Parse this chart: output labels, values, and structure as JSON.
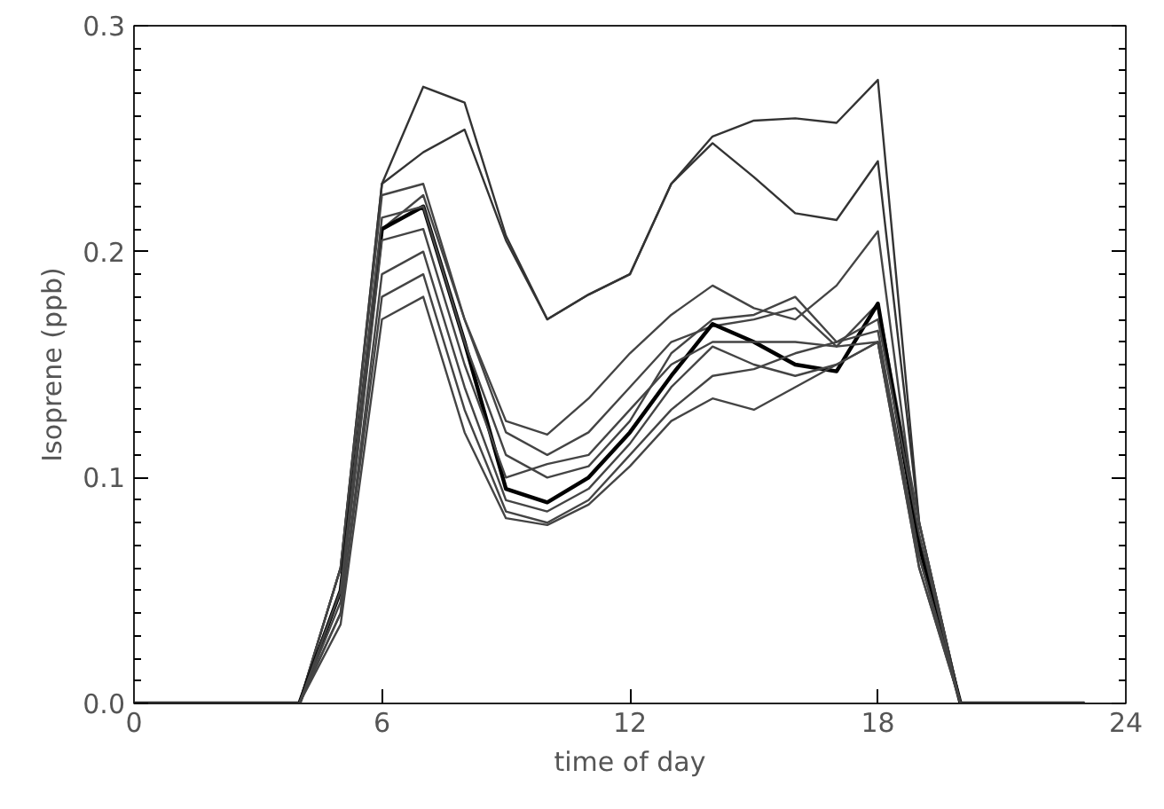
{
  "chart_data": {
    "type": "line",
    "xlabel": "time of day",
    "ylabel": "Isoprene (ppb)",
    "x": [
      0,
      1,
      2,
      3,
      4,
      5,
      6,
      7,
      8,
      9,
      10,
      11,
      12,
      13,
      14,
      15,
      16,
      17,
      18,
      19,
      20,
      21,
      22,
      23
    ],
    "xlim": [
      0,
      24
    ],
    "xticks": [
      0,
      6,
      12,
      18,
      24
    ],
    "ylim": [
      0,
      0.3
    ],
    "yticks": [
      {
        "value": 0,
        "label": "0.0"
      },
      {
        "value": 0.1,
        "label": "0.1"
      },
      {
        "value": 0.2,
        "label": "0.2"
      },
      {
        "value": 0.3,
        "label": "0.3"
      }
    ],
    "grid": false,
    "marker": "none",
    "line_style": "solid",
    "series": [
      {
        "color": "#333333",
        "values": [
          0,
          0,
          0,
          0,
          0,
          0.06,
          0.23,
          0.273,
          0.266,
          0.207,
          0.17,
          0.181,
          0.19,
          0.23,
          0.251,
          0.258,
          0.259,
          0.257,
          0.276,
          0.08,
          0,
          0,
          0,
          0
        ]
      },
      {
        "color": "#333333",
        "values": [
          0,
          0,
          0,
          0,
          0,
          0.06,
          0.23,
          0.244,
          0.254,
          0.205,
          0.17,
          0.181,
          0.19,
          0.23,
          0.248,
          0.233,
          0.217,
          0.214,
          0.24,
          0.08,
          0,
          0,
          0,
          0
        ]
      },
      {
        "color": "#444444",
        "values": [
          0,
          0,
          0,
          0,
          0,
          0.05,
          0.21,
          0.225,
          0.17,
          0.125,
          0.119,
          0.135,
          0.155,
          0.172,
          0.185,
          0.175,
          0.17,
          0.185,
          0.209,
          0.07,
          0,
          0,
          0,
          0
        ]
      },
      {
        "color": "#444444",
        "values": [
          0,
          0,
          0,
          0,
          0,
          0.06,
          0.225,
          0.23,
          0.17,
          0.12,
          0.11,
          0.12,
          0.14,
          0.16,
          0.167,
          0.17,
          0.175,
          0.158,
          0.177,
          0.08,
          0,
          0,
          0,
          0
        ]
      },
      {
        "color": "#000000",
        "values": [
          0,
          0,
          0,
          0,
          0,
          0.05,
          0.21,
          0.22,
          0.16,
          0.095,
          0.089,
          0.1,
          0.12,
          0.145,
          0.168,
          0.16,
          0.15,
          0.147,
          0.177,
          0.07,
          0,
          0,
          0,
          0
        ]
      },
      {
        "color": "#444444",
        "values": [
          0,
          0,
          0,
          0,
          0,
          0.045,
          0.205,
          0.21,
          0.15,
          0.1,
          0.106,
          0.11,
          0.13,
          0.15,
          0.16,
          0.16,
          0.16,
          0.158,
          0.16,
          0.065,
          0,
          0,
          0,
          0
        ]
      },
      {
        "color": "#444444",
        "values": [
          0,
          0,
          0,
          0,
          0,
          0.04,
          0.19,
          0.2,
          0.14,
          0.09,
          0.085,
          0.095,
          0.115,
          0.14,
          0.158,
          0.15,
          0.145,
          0.15,
          0.16,
          0.06,
          0,
          0,
          0,
          0
        ]
      },
      {
        "color": "#444444",
        "values": [
          0,
          0,
          0,
          0,
          0,
          0.04,
          0.18,
          0.19,
          0.13,
          0.085,
          0.08,
          0.09,
          0.11,
          0.13,
          0.145,
          0.148,
          0.155,
          0.16,
          0.165,
          0.065,
          0,
          0,
          0,
          0
        ]
      },
      {
        "color": "#444444",
        "values": [
          0,
          0,
          0,
          0,
          0,
          0.035,
          0.17,
          0.18,
          0.12,
          0.082,
          0.079,
          0.088,
          0.105,
          0.125,
          0.135,
          0.13,
          0.14,
          0.15,
          0.16,
          0.06,
          0,
          0,
          0,
          0
        ]
      },
      {
        "color": "#444444",
        "values": [
          0,
          0,
          0,
          0,
          0,
          0.05,
          0.215,
          0.22,
          0.16,
          0.11,
          0.1,
          0.105,
          0.125,
          0.155,
          0.17,
          0.172,
          0.18,
          0.16,
          0.17,
          0.075,
          0,
          0,
          0,
          0
        ]
      }
    ]
  }
}
